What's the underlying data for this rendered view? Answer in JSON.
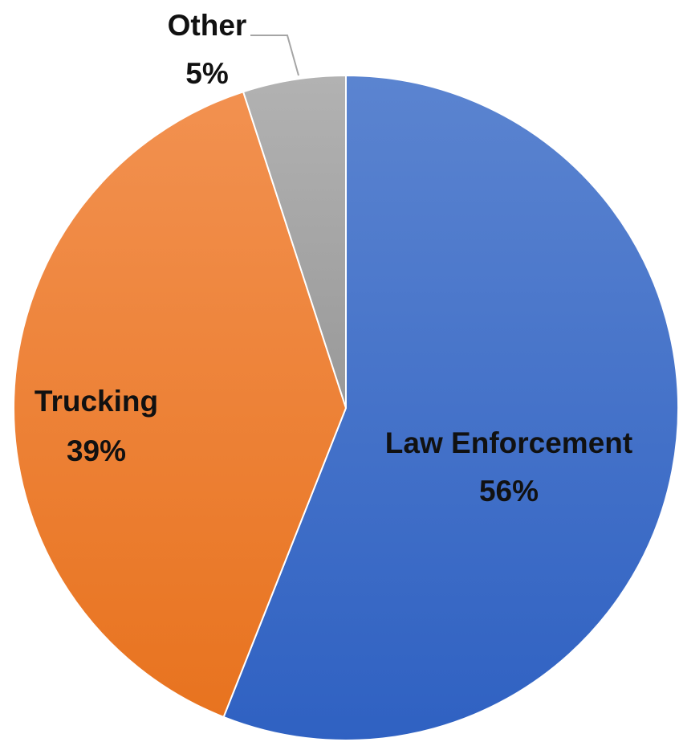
{
  "chart_data": {
    "type": "pie",
    "title": "",
    "slices": [
      {
        "label": "Law Enforcement",
        "value": 56,
        "value_label": "56%",
        "color": "#3A6CC8"
      },
      {
        "label": "Trucking",
        "value": 39,
        "value_label": "39%",
        "color": "#ED7D31"
      },
      {
        "label": "Other",
        "value": 5,
        "value_label": "5%",
        "color": "#A5A5A5"
      }
    ],
    "start": "12 o'clock",
    "direction": "clockwise",
    "legend": "none",
    "labels": "category name and percent on or beside each slice"
  }
}
